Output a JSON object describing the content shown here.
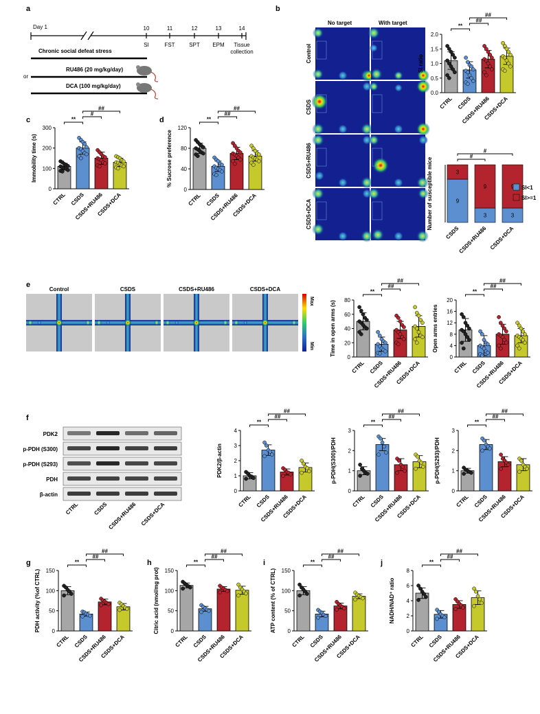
{
  "colors": {
    "ctrl": "#a6a6a6",
    "csds": "#5b8fd0",
    "ru486": "#b3242e",
    "dca": "#c6c92b",
    "si_lt1": "#5b8fd0",
    "si_ge1": "#b3242e",
    "heat_bg": "#13208f",
    "gray_bg": "#c9c9c9"
  },
  "groups": [
    "CTRL",
    "CSDS",
    "CSDS+RU486",
    "CSDS+DCA"
  ],
  "panel_a": {
    "letter": "a",
    "day_label": "Day 1",
    "days": [
      "10",
      "11",
      "12",
      "13",
      "14"
    ],
    "tests": [
      "SI",
      "FST",
      "SPT",
      "EPM",
      "Tissue collection"
    ],
    "stress_label": "Chronic social defeat stress",
    "treat1": "RU486 (20 mg/kg/day)",
    "treat2": "DCA (100 mg/kg/day)",
    "or_label": "or",
    "mouse_icon": "mouse-icon"
  },
  "panel_b": {
    "letter": "b",
    "col_titles": [
      "No target",
      "With target"
    ],
    "row_labels": [
      "Control",
      "CSDS",
      "CSDS+RU486",
      "CSDS+DCA"
    ]
  },
  "panel_e": {
    "letter": "e",
    "maps": [
      "Control",
      "CSDS",
      "CSDS+RU486",
      "CSDS+DCA"
    ],
    "scale_max": "Max",
    "scale_min": "Min"
  },
  "panel_f": {
    "letter": "f",
    "blot_labels": [
      "PDK2",
      "p-PDH (S300)",
      "p-PDH (S293)",
      "PDH",
      "β-actin"
    ]
  },
  "chart_data": [
    {
      "id": "b_si",
      "letter": "",
      "type": "bar",
      "ylabel": "SI ratio",
      "ylim": [
        0,
        2.0
      ],
      "yticks": [
        "0.0",
        "0.5",
        "1.0",
        "1.5",
        "2.0"
      ],
      "means": [
        1.1,
        0.78,
        1.15,
        1.25
      ],
      "errors": [
        0.3,
        0.28,
        0.3,
        0.28
      ],
      "points": [
        [
          1.6,
          1.5,
          1.4,
          1.3,
          1.2,
          1.1,
          1.0,
          0.9,
          0.8,
          0.7,
          0.6,
          0.5
        ],
        [
          1.2,
          1.05,
          0.95,
          0.9,
          0.8,
          0.75,
          0.7,
          0.6,
          0.5,
          0.4,
          0.35,
          0.3
        ],
        [
          1.6,
          1.5,
          1.4,
          1.3,
          1.2,
          1.15,
          1.1,
          1.0,
          0.9,
          0.8,
          0.7,
          0.6
        ],
        [
          1.7,
          1.6,
          1.5,
          1.4,
          1.3,
          1.25,
          1.2,
          1.1,
          1.0,
          0.9,
          0.8,
          0.75
        ]
      ],
      "sig": [
        {
          "from": 0,
          "to": 1,
          "label": "**",
          "level": 0
        },
        {
          "from": 1,
          "to": 2,
          "label": "##",
          "level": 1
        },
        {
          "from": 1,
          "to": 3,
          "label": "##",
          "level": 2
        }
      ]
    },
    {
      "id": "b_susc",
      "letter": "",
      "type": "stacked_bar",
      "ylabel": "Number of susceptible mice",
      "categories": [
        "CSDS",
        "CSDS+RU486",
        "CSDS+DCA"
      ],
      "si_lt1": [
        9,
        3,
        3
      ],
      "si_ge1": [
        3,
        9,
        9
      ],
      "legend": [
        "SI<1",
        "SI>=1"
      ],
      "sig": [
        {
          "from": 0,
          "to": 1,
          "label": "#",
          "level": 0
        },
        {
          "from": 0,
          "to": 2,
          "label": "#",
          "level": 1
        }
      ]
    },
    {
      "id": "c",
      "letter": "c",
      "type": "bar",
      "ylabel": "Immobility time (s)",
      "ylim": [
        0,
        300
      ],
      "yticks": [
        "0",
        "100",
        "200",
        "300"
      ],
      "means": [
        110,
        200,
        150,
        130
      ],
      "errors": [
        15,
        30,
        30,
        20
      ],
      "points": [
        [
          135,
          130,
          122,
          118,
          112,
          110,
          105,
          100,
          98,
          92,
          88,
          85
        ],
        [
          250,
          240,
          230,
          220,
          205,
          200,
          195,
          185,
          175,
          170,
          160,
          150
        ],
        [
          190,
          180,
          170,
          160,
          155,
          150,
          145,
          140,
          130,
          125,
          115,
          110
        ],
        [
          160,
          155,
          150,
          140,
          135,
          130,
          128,
          120,
          115,
          110,
          105,
          100
        ]
      ],
      "sig": [
        {
          "from": 0,
          "to": 1,
          "label": "**",
          "level": 0
        },
        {
          "from": 1,
          "to": 2,
          "label": "#",
          "level": 1
        },
        {
          "from": 1,
          "to": 3,
          "label": "##",
          "level": 2
        }
      ]
    },
    {
      "id": "d",
      "letter": "d",
      "type": "bar",
      "ylabel": "% Sucrose preference",
      "ylim": [
        0,
        120
      ],
      "yticks": [
        "0",
        "40",
        "80",
        "120"
      ],
      "means": [
        80,
        45,
        70,
        65
      ],
      "errors": [
        10,
        10,
        12,
        10
      ],
      "points": [
        [
          96,
          92,
          88,
          85,
          82,
          80,
          78,
          75,
          72,
          70,
          68,
          65
        ],
        [
          62,
          58,
          55,
          50,
          48,
          45,
          42,
          40,
          38,
          35,
          30,
          28
        ],
        [
          90,
          85,
          80,
          75,
          72,
          70,
          68,
          65,
          62,
          58,
          55,
          50
        ],
        [
          85,
          80,
          75,
          70,
          68,
          65,
          62,
          60,
          58,
          55,
          52,
          48
        ]
      ],
      "sig": [
        {
          "from": 0,
          "to": 1,
          "label": "**",
          "level": 0
        },
        {
          "from": 1,
          "to": 2,
          "label": "##",
          "level": 1
        },
        {
          "from": 1,
          "to": 3,
          "label": "##",
          "level": 2
        }
      ]
    },
    {
      "id": "e_time",
      "letter": "",
      "type": "bar",
      "ylabel": "Time in open arms (s)",
      "ylim": [
        0,
        80
      ],
      "yticks": [
        "0",
        "20",
        "40",
        "60",
        "80"
      ],
      "means": [
        50,
        18,
        38,
        43
      ],
      "errors": [
        12,
        10,
        12,
        15
      ],
      "points": [
        [
          70,
          65,
          60,
          55,
          52,
          50,
          48,
          45,
          42,
          40,
          35,
          32
        ],
        [
          35,
          30,
          25,
          22,
          20,
          18,
          15,
          12,
          10,
          8,
          6,
          5
        ],
        [
          58,
          55,
          50,
          45,
          42,
          38,
          35,
          32,
          28,
          25,
          20,
          18
        ],
        [
          70,
          62,
          58,
          52,
          48,
          43,
          40,
          35,
          30,
          28,
          25,
          20
        ]
      ],
      "sig": [
        {
          "from": 0,
          "to": 1,
          "label": "**",
          "level": 0
        },
        {
          "from": 1,
          "to": 2,
          "label": "##",
          "level": 1
        },
        {
          "from": 1,
          "to": 3,
          "label": "##",
          "level": 2
        }
      ]
    },
    {
      "id": "e_entries",
      "letter": "",
      "type": "bar",
      "ylabel": "Open arms entries",
      "ylim": [
        0,
        20
      ],
      "yticks": [
        "0",
        "4",
        "8",
        "12",
        "16",
        "20"
      ],
      "means": [
        9.5,
        4,
        8,
        7.5
      ],
      "errors": [
        4,
        3.5,
        3.5,
        2.5
      ],
      "points": [
        [
          15,
          14,
          12,
          11,
          10,
          9.5,
          9,
          8,
          7,
          6,
          5,
          3
        ],
        [
          9,
          8,
          6,
          5,
          4.5,
          4,
          3.5,
          3,
          2,
          1.5,
          1,
          0.5
        ],
        [
          14,
          12,
          11,
          10,
          9,
          8,
          7.5,
          7,
          6,
          5,
          4,
          3
        ],
        [
          12,
          11,
          10,
          9,
          8,
          7.5,
          7,
          6.5,
          6,
          5,
          4,
          3
        ]
      ],
      "sig": [
        {
          "from": 0,
          "to": 1,
          "label": "**",
          "level": 0
        },
        {
          "from": 1,
          "to": 2,
          "label": "##",
          "level": 1
        },
        {
          "from": 1,
          "to": 3,
          "label": "##",
          "level": 2
        }
      ]
    },
    {
      "id": "f1",
      "letter": "",
      "type": "bar",
      "ylabel": "PDK2/β-actin",
      "ylim": [
        0,
        4
      ],
      "yticks": [
        "0",
        "1",
        "2",
        "3",
        "4"
      ],
      "means": [
        1.0,
        2.7,
        1.25,
        1.55
      ],
      "errors": [
        0.2,
        0.35,
        0.2,
        0.3
      ],
      "points": [
        [
          1.25,
          1.15,
          1.0,
          0.95,
          0.85,
          0.8
        ],
        [
          3.2,
          3.0,
          2.7,
          2.6,
          2.4,
          2.3
        ],
        [
          1.5,
          1.4,
          1.25,
          1.2,
          1.1,
          1.0
        ],
        [
          2.0,
          1.8,
          1.6,
          1.5,
          1.3,
          1.2
        ]
      ],
      "sig": [
        {
          "from": 0,
          "to": 1,
          "label": "**",
          "level": 0
        },
        {
          "from": 1,
          "to": 2,
          "label": "##",
          "level": 1
        },
        {
          "from": 1,
          "to": 3,
          "label": "##",
          "level": 2
        }
      ]
    },
    {
      "id": "f2",
      "letter": "",
      "type": "bar",
      "ylabel": "p-PDH(S300)/PDH",
      "ylim": [
        0,
        3
      ],
      "yticks": [
        "0",
        "1",
        "2",
        "3"
      ],
      "means": [
        1.0,
        2.3,
        1.3,
        1.45
      ],
      "errors": [
        0.2,
        0.3,
        0.3,
        0.3
      ],
      "points": [
        [
          1.3,
          1.1,
          1.0,
          0.9,
          0.85,
          0.75
        ],
        [
          2.7,
          2.6,
          2.4,
          2.2,
          1.9,
          1.8
        ],
        [
          1.6,
          1.5,
          1.3,
          1.2,
          1.0,
          0.9
        ],
        [
          1.8,
          1.7,
          1.5,
          1.4,
          1.2,
          1.1
        ]
      ],
      "sig": [
        {
          "from": 0,
          "to": 1,
          "label": "**",
          "level": 0
        },
        {
          "from": 1,
          "to": 2,
          "label": "##",
          "level": 1
        },
        {
          "from": 1,
          "to": 3,
          "label": "##",
          "level": 2
        }
      ]
    },
    {
      "id": "f3",
      "letter": "",
      "type": "bar",
      "ylabel": "p-PDH(S293)/PDH",
      "ylim": [
        0,
        3
      ],
      "yticks": [
        "0",
        "1",
        "2",
        "3"
      ],
      "means": [
        1.0,
        2.3,
        1.45,
        1.3
      ],
      "errors": [
        0.12,
        0.25,
        0.25,
        0.3
      ],
      "points": [
        [
          1.15,
          1.05,
          1.0,
          0.95,
          0.9,
          0.85
        ],
        [
          2.6,
          2.5,
          2.3,
          2.2,
          2.1,
          2.0
        ],
        [
          1.8,
          1.6,
          1.5,
          1.4,
          1.3,
          1.1
        ],
        [
          1.6,
          1.5,
          1.3,
          1.2,
          1.1,
          0.95
        ]
      ],
      "sig": [
        {
          "from": 0,
          "to": 1,
          "label": "**",
          "level": 0
        },
        {
          "from": 1,
          "to": 2,
          "label": "##",
          "level": 1
        },
        {
          "from": 1,
          "to": 3,
          "label": "##",
          "level": 2
        }
      ]
    },
    {
      "id": "g",
      "letter": "g",
      "type": "bar",
      "ylabel": "PDH activity (%of CTRL)",
      "ylim": [
        0,
        150
      ],
      "yticks": [
        "0",
        "50",
        "100",
        "150"
      ],
      "means": [
        100,
        42,
        72,
        60
      ],
      "errors": [
        10,
        5,
        7,
        8
      ],
      "points": [
        [
          112,
          108,
          102,
          98,
          92,
          88
        ],
        [
          48,
          46,
          43,
          40,
          38,
          36
        ],
        [
          80,
          76,
          73,
          70,
          67,
          64
        ],
        [
          70,
          66,
          62,
          58,
          55,
          52
        ]
      ],
      "sig": [
        {
          "from": 0,
          "to": 1,
          "label": "**",
          "level": 0
        },
        {
          "from": 1,
          "to": 2,
          "label": "##",
          "level": 1
        },
        {
          "from": 1,
          "to": 3,
          "label": "##",
          "level": 2
        }
      ]
    },
    {
      "id": "h",
      "letter": "h",
      "type": "bar",
      "ylabel": "Citric acid (nmol/mg prot)",
      "ylim": [
        0,
        150
      ],
      "yticks": [
        "0",
        "50",
        "100",
        "150"
      ],
      "means": [
        113,
        55,
        104,
        101
      ],
      "errors": [
        6,
        6,
        6,
        10
      ],
      "points": [
        [
          122,
          118,
          114,
          111,
          108,
          105
        ],
        [
          64,
          60,
          56,
          53,
          50,
          47
        ],
        [
          112,
          108,
          105,
          102,
          99,
          96
        ],
        [
          115,
          108,
          103,
          98,
          93,
          88
        ]
      ],
      "sig": [
        {
          "from": 0,
          "to": 1,
          "label": "**",
          "level": 0
        },
        {
          "from": 1,
          "to": 2,
          "label": "##",
          "level": 1
        },
        {
          "from": 1,
          "to": 3,
          "label": "##",
          "level": 2
        }
      ]
    },
    {
      "id": "i",
      "letter": "i",
      "type": "bar",
      "ylabel": "ATP content (% of CTRL)",
      "ylim": [
        0,
        150
      ],
      "yticks": [
        "0",
        "50",
        "100",
        "150"
      ],
      "means": [
        100,
        42,
        62,
        86
      ],
      "errors": [
        10,
        7,
        7,
        6
      ],
      "points": [
        [
          115,
          108,
          103,
          98,
          92,
          88
        ],
        [
          52,
          48,
          45,
          40,
          37,
          33
        ],
        [
          72,
          67,
          63,
          60,
          56,
          53
        ],
        [
          95,
          90,
          87,
          84,
          81,
          78
        ]
      ],
      "sig": [
        {
          "from": 0,
          "to": 1,
          "label": "**",
          "level": 0
        },
        {
          "from": 1,
          "to": 2,
          "label": "##",
          "level": 1
        },
        {
          "from": 1,
          "to": 3,
          "label": "##",
          "level": 2
        }
      ]
    },
    {
      "id": "j",
      "letter": "j",
      "type": "bar",
      "ylabel": "NADH/NAD⁺ ratio",
      "ylim": [
        0,
        8
      ],
      "yticks": [
        "0",
        "2",
        "4",
        "6",
        "8"
      ],
      "means": [
        5.0,
        2.2,
        3.5,
        4.4
      ],
      "errors": [
        0.7,
        0.5,
        0.5,
        0.9
      ],
      "points": [
        [
          6.0,
          5.6,
          5.2,
          4.9,
          4.5,
          4.1
        ],
        [
          2.8,
          2.5,
          2.2,
          2.0,
          1.8,
          1.6
        ],
        [
          4.2,
          3.9,
          3.6,
          3.4,
          3.1,
          2.9
        ],
        [
          5.6,
          5.2,
          4.6,
          4.2,
          3.7,
          3.3
        ]
      ],
      "sig": [
        {
          "from": 0,
          "to": 1,
          "label": "**",
          "level": 0
        },
        {
          "from": 1,
          "to": 2,
          "label": "##",
          "level": 1
        },
        {
          "from": 1,
          "to": 3,
          "label": "##",
          "level": 2
        }
      ]
    }
  ]
}
